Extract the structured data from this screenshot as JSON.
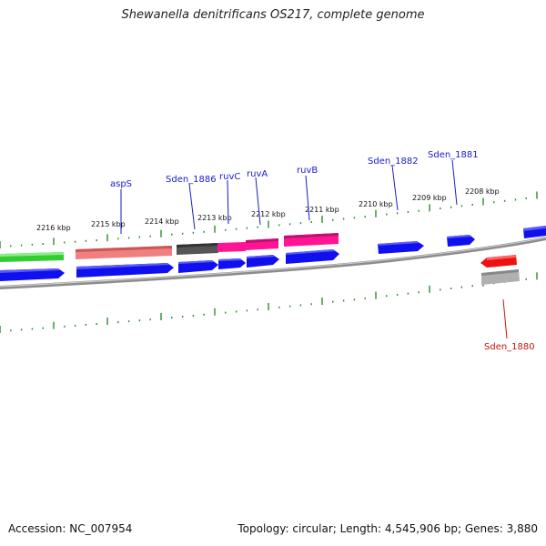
{
  "title": "Shewanella denitrificans OS217, complete genome",
  "footer": {
    "accession": "Accession: NC_007954",
    "info": "Topology: circular; Length: 4,545,906 bp; Genes: 3,880"
  },
  "colors": {
    "backbone": "#8c8c8c",
    "tick": "#2e8b2e",
    "label_forward": "#1a1acc",
    "label_reverse": "#cc1111",
    "leader_forward": "#1a1acc",
    "leader_reverse": "#cc1111"
  },
  "kbp_labels": [
    "2216 kbp",
    "2215 kbp",
    "2214 kbp",
    "2213 kbp",
    "2212 kbp",
    "2211 kbp",
    "2210 kbp",
    "2209 kbp",
    "2208 kbp"
  ],
  "gene_labels": {
    "aspS": "aspS",
    "sden_1886": "Sden_1886",
    "ruvC": "ruvC",
    "ruvA": "ruvA",
    "ruvB": "ruvB",
    "sden_1882": "Sden_1882",
    "sden_1881": "Sden_1881",
    "sden_1880": "Sden_1880"
  },
  "feature_colors": {
    "green": "#33cc33",
    "salmon": "#f08080",
    "dark_gray": "#555555",
    "magenta": "#ff1493",
    "pink_dark": "#e0117f",
    "blue": "#1010ee",
    "red": "#ee1111",
    "light_gray": "#b0b0b0"
  }
}
